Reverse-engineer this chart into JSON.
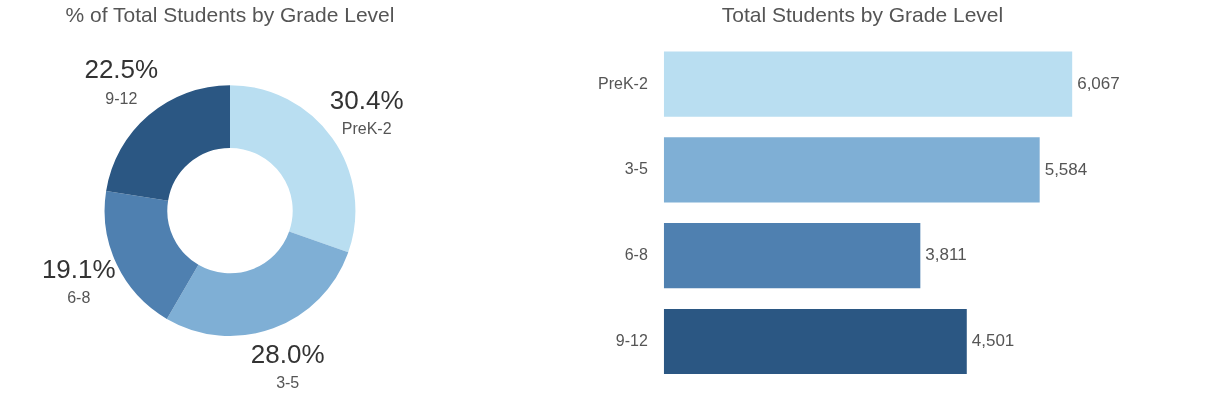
{
  "chart_data": [
    {
      "type": "donut",
      "title": "% of Total Students by Grade Level",
      "categories": [
        "PreK-2",
        "3-5",
        "6-8",
        "9-12"
      ],
      "values": [
        30.4,
        28.0,
        19.1,
        22.5
      ],
      "value_labels": [
        "30.4%",
        "28.0%",
        "19.1%",
        "22.5%"
      ],
      "colors": [
        "#b9def1",
        "#7fafd5",
        "#4f80b0",
        "#2b5783"
      ],
      "legend": false
    },
    {
      "type": "bar",
      "orientation": "horizontal",
      "title": "Total Students by Grade Level",
      "categories": [
        "PreK-2",
        "3-5",
        "6-8",
        "9-12"
      ],
      "values": [
        6067,
        5584,
        3811,
        4501
      ],
      "value_labels": [
        "6,067",
        "5,584",
        "3,811",
        "4,501"
      ],
      "colors": [
        "#b9def1",
        "#7fafd5",
        "#4f80b0",
        "#2b5783"
      ],
      "legend": false
    }
  ]
}
